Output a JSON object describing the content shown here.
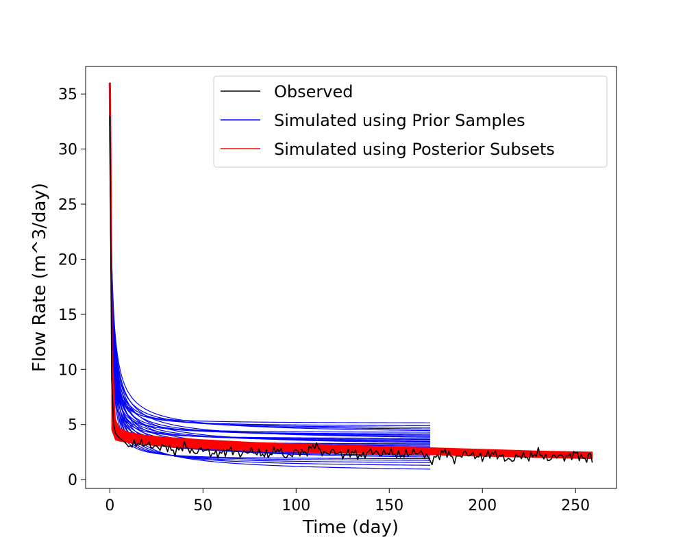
{
  "chart_data": {
    "type": "line",
    "title": "",
    "xlabel": "Time (day)",
    "ylabel": "Flow Rate (m^3/day)",
    "xlim": [
      -13,
      272
    ],
    "ylim": [
      -0.8,
      37.5
    ],
    "xticks": [
      0,
      50,
      100,
      150,
      200,
      250
    ],
    "yticks": [
      0,
      5,
      10,
      15,
      20,
      25,
      30,
      35
    ],
    "grid": false,
    "legend_position": "top-right",
    "legend": [
      {
        "label": "Observed",
        "color": "#000000"
      },
      {
        "label": "Simulated using Prior Samples",
        "color": "#0000ff"
      },
      {
        "label": "Simulated using Posterior Subsets",
        "color": "#ff0000"
      }
    ],
    "series": [
      {
        "name": "Observed",
        "color": "#000000",
        "x": [
          0,
          1,
          2,
          3,
          5,
          8,
          10,
          15,
          20,
          25,
          30,
          35,
          40,
          45,
          50,
          55,
          60,
          65,
          70,
          75,
          80,
          85,
          90,
          95,
          100,
          105,
          110,
          115,
          120,
          125,
          130,
          135,
          140,
          145,
          150,
          155,
          160,
          165,
          170,
          172,
          175,
          180,
          185,
          190,
          195,
          200,
          205,
          210,
          215,
          220,
          225,
          230,
          235,
          240,
          245,
          250,
          255,
          258,
          259
        ],
        "y": [
          33.0,
          9.0,
          5.0,
          4.2,
          3.8,
          3.4,
          3.0,
          3.3,
          3.2,
          2.9,
          3.0,
          2.5,
          3.1,
          2.4,
          2.8,
          2.3,
          2.4,
          2.7,
          2.3,
          2.6,
          2.4,
          2.2,
          2.8,
          2.0,
          2.6,
          2.4,
          3.2,
          2.3,
          2.6,
          2.2,
          2.5,
          2.1,
          2.6,
          2.3,
          2.5,
          2.2,
          2.3,
          2.5,
          2.2,
          1.6,
          2.0,
          2.6,
          1.8,
          2.4,
          2.2,
          2.0,
          2.4,
          2.1,
          1.7,
          2.2,
          2.0,
          2.5,
          1.8,
          2.2,
          2.0,
          2.4,
          1.8,
          2.3,
          1.5
        ]
      }
    ],
    "prior_curves": {
      "name": "Simulated using Prior Samples",
      "color": "#0000ff",
      "x_end": 172,
      "initial": 35,
      "end_values": [
        0.95,
        1.3,
        1.55,
        1.75,
        1.9,
        2.05,
        2.2,
        2.35,
        2.5,
        2.65,
        2.8,
        2.95,
        3.05,
        3.15,
        3.25,
        3.35,
        3.45,
        3.55,
        3.65,
        3.75,
        3.85,
        3.95,
        4.05,
        4.15,
        4.3,
        4.45,
        4.6,
        4.75,
        4.9,
        5.15
      ]
    },
    "posterior_band": {
      "name": "Simulated using Posterior Subsets",
      "color": "#ff0000",
      "x": [
        1,
        3,
        5,
        10,
        20,
        30,
        50,
        75,
        100,
        125,
        150,
        172,
        200,
        230,
        259
      ],
      "lower": [
        4.5,
        3.6,
        3.5,
        3.35,
        3.15,
        3.0,
        2.8,
        2.62,
        2.5,
        2.4,
        2.3,
        2.25,
        2.12,
        2.0,
        1.9
      ],
      "upper": [
        13.0,
        5.5,
        4.7,
        4.3,
        4.0,
        3.85,
        3.62,
        3.4,
        3.25,
        3.12,
        3.0,
        2.9,
        2.75,
        2.6,
        2.5
      ]
    }
  }
}
